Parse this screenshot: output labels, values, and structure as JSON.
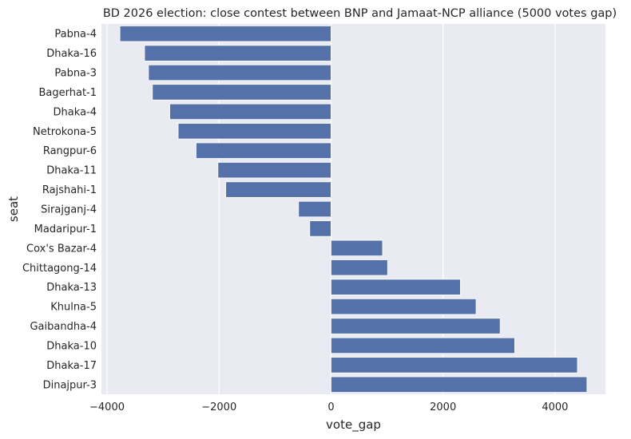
{
  "chart_data": {
    "type": "bar",
    "orientation": "horizontal",
    "title": "BD 2026 election: close contest between BNP and Jamaat-NCP alliance (5000 votes gap)",
    "xlabel": "vote_gap",
    "ylabel": "seat",
    "xlim": [
      -4100,
      4900
    ],
    "xticks": [
      -4000,
      -2000,
      0,
      2000,
      4000
    ],
    "xtick_labels": [
      "−4000",
      "−2000",
      "0",
      "2000",
      "4000"
    ],
    "grid": true,
    "bar_color": "#5471a9",
    "background_color": "#eaeaf2",
    "categories": [
      "Pabna-4",
      "Dhaka-16",
      "Pabna-3",
      "Bagerhat-1",
      "Dhaka-4",
      "Netrokona-5",
      "Rangpur-6",
      "Dhaka-11",
      "Rajshahi-1",
      "Sirajganj-4",
      "Madaripur-1",
      "Cox's Bazar-4",
      "Chittagong-14",
      "Dhaka-13",
      "Khulna-5",
      "Gaibandha-4",
      "Dhaka-10",
      "Dhaka-17",
      "Dinajpur-3"
    ],
    "values": [
      -3770,
      -3330,
      -3260,
      -3190,
      -2880,
      -2730,
      -2410,
      -2020,
      -1880,
      -580,
      -380,
      920,
      1010,
      2310,
      2590,
      3020,
      3280,
      4400,
      4570
    ]
  }
}
